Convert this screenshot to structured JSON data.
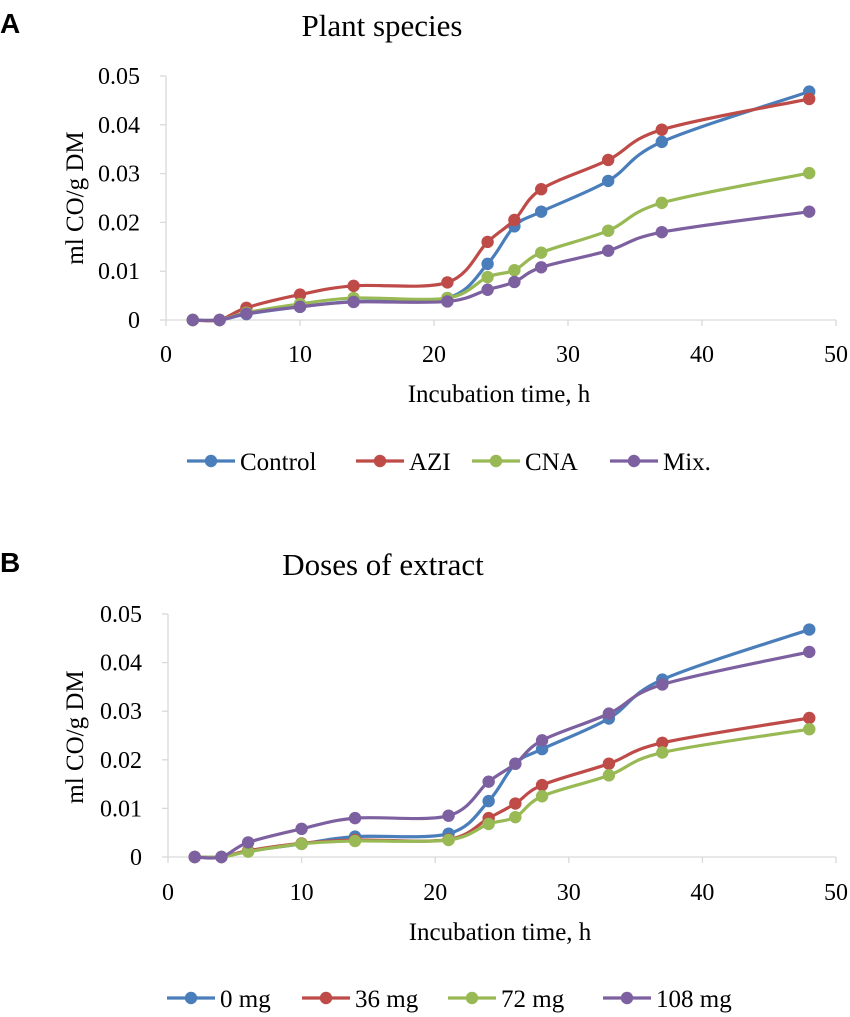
{
  "chart_data": [
    {
      "type": "line",
      "panel_label": "A",
      "title": "Plant species",
      "xlabel": "Incubation time, h",
      "ylabel": "ml CO/g DM",
      "xlim": [
        0,
        50
      ],
      "ylim": [
        0,
        0.05
      ],
      "xticks": [
        "0",
        "10",
        "20",
        "30",
        "40",
        "50"
      ],
      "yticks": [
        "0",
        "0.01",
        "0.02",
        "0.03",
        "0.04",
        "0.05"
      ],
      "grid": false,
      "legend_position": "bottom",
      "x": [
        2,
        4,
        6,
        10,
        14,
        21,
        24,
        26,
        28,
        33,
        37,
        48
      ],
      "series": [
        {
          "name": "Control",
          "color": "#4a7ebb",
          "values": [
            0,
            0,
            0.0012,
            0.0027,
            0.0038,
            0.0045,
            0.0115,
            0.0192,
            0.0222,
            0.0285,
            0.0365,
            0.0468
          ]
        },
        {
          "name": "AZI",
          "color": "#be4b48",
          "values": [
            0,
            0,
            0.0025,
            0.0052,
            0.007,
            0.0077,
            0.016,
            0.0205,
            0.0268,
            0.0328,
            0.039,
            0.0453
          ]
        },
        {
          "name": "CNA",
          "color": "#98b954",
          "values": [
            0,
            0,
            0.0015,
            0.0033,
            0.0045,
            0.0045,
            0.0088,
            0.0102,
            0.0138,
            0.0183,
            0.024,
            0.0301
          ]
        },
        {
          "name": "Mix.",
          "color": "#7d60a0",
          "values": [
            0,
            0,
            0.0013,
            0.0027,
            0.0037,
            0.0038,
            0.0062,
            0.0078,
            0.0108,
            0.0142,
            0.018,
            0.0222
          ]
        }
      ]
    },
    {
      "type": "line",
      "panel_label": "B",
      "title": "Doses of extract",
      "xlabel": "Incubation time, h",
      "ylabel": "ml CO/g DM",
      "xlim": [
        0,
        50
      ],
      "ylim": [
        0,
        0.05
      ],
      "xticks": [
        "0",
        "10",
        "20",
        "30",
        "40",
        "50"
      ],
      "yticks": [
        "0",
        "0.01",
        "0.02",
        "0.03",
        "0.04",
        "0.05"
      ],
      "grid": false,
      "legend_position": "bottom",
      "x": [
        2,
        4,
        6,
        10,
        14,
        21,
        24,
        26,
        28,
        33,
        37,
        48
      ],
      "series": [
        {
          "name": "0 mg",
          "color": "#4a7ebb",
          "values": [
            0,
            0,
            0.0012,
            0.0027,
            0.0042,
            0.0048,
            0.0115,
            0.0192,
            0.0222,
            0.0285,
            0.0365,
            0.0468
          ]
        },
        {
          "name": "36 mg",
          "color": "#be4b48",
          "values": [
            0,
            0,
            0.0013,
            0.0028,
            0.0035,
            0.0036,
            0.008,
            0.011,
            0.0148,
            0.0192,
            0.0235,
            0.0286
          ]
        },
        {
          "name": "72 mg",
          "color": "#98b954",
          "values": [
            0,
            0,
            0.0011,
            0.0027,
            0.0033,
            0.0035,
            0.0068,
            0.0082,
            0.0125,
            0.0168,
            0.0215,
            0.0263
          ]
        },
        {
          "name": "108 mg",
          "color": "#7d60a0",
          "values": [
            0,
            0,
            0.003,
            0.0058,
            0.008,
            0.0085,
            0.0155,
            0.0192,
            0.024,
            0.0295,
            0.0355,
            0.0422
          ]
        }
      ]
    }
  ]
}
